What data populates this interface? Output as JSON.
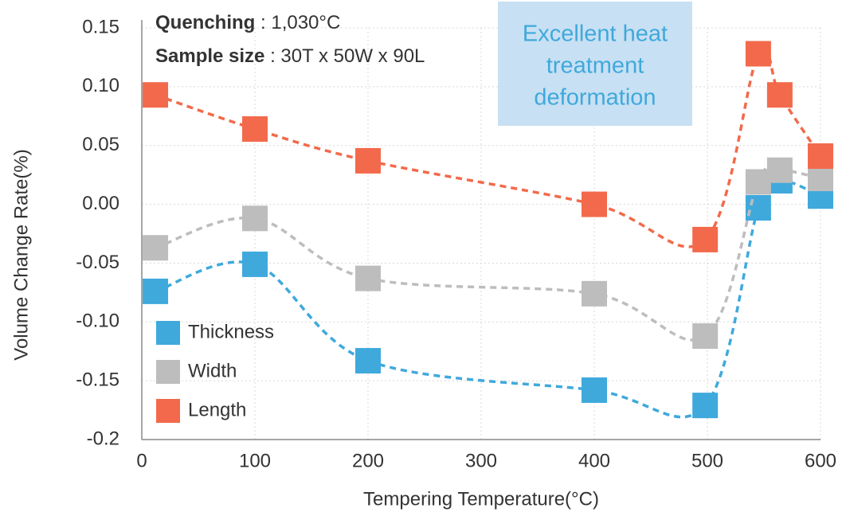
{
  "chart_data": {
    "type": "line",
    "annotations": {
      "quenching": [
        "Quenching",
        " : 1,030°C"
      ],
      "sample_size": [
        "Sample size",
        " : 30T x 50W x 90L"
      ],
      "highlight": [
        "Excellent heat",
        "treatment",
        "deformation"
      ]
    },
    "x_label": "Tempering Temperature(°C)",
    "y_label": "Volume Change Rate(%)",
    "xlim": [
      0,
      600
    ],
    "xticks": [
      0,
      100,
      200,
      300,
      400,
      500,
      600
    ],
    "ylim": [
      -0.2,
      0.15
    ],
    "yticks": [
      -0.2,
      {
        "value": -0.15,
        "label": "-0.15"
      },
      {
        "value": -0.1,
        "label": "-0.10"
      },
      -0.05,
      {
        "value": 0,
        "label": "0.00"
      },
      0.05,
      {
        "value": 0.1,
        "label": "0.10"
      },
      0.15
    ],
    "grid": true,
    "legend": "lower left",
    "series": [
      {
        "name": "Thickness",
        "color": "#3fa9dc",
        "x": [
          12,
          100,
          200,
          400,
          498,
          545,
          564,
          600
        ],
        "values": [
          -0.074,
          -0.051,
          -0.133,
          -0.158,
          -0.171,
          -0.003,
          0.02,
          0.007
        ]
      },
      {
        "name": "Width",
        "color": "#bdbdbd",
        "x": [
          12,
          100,
          200,
          400,
          498,
          545,
          564,
          600
        ],
        "values": [
          -0.037,
          -0.012,
          -0.063,
          -0.076,
          -0.112,
          0.019,
          0.029,
          0.022
        ]
      },
      {
        "name": "Length",
        "color": "#f26a4b",
        "x": [
          12,
          100,
          200,
          400,
          498,
          545,
          564,
          600
        ],
        "values": [
          0.093,
          0.064,
          0.037,
          0.0,
          -0.03,
          0.128,
          0.093,
          0.041
        ]
      }
    ]
  }
}
